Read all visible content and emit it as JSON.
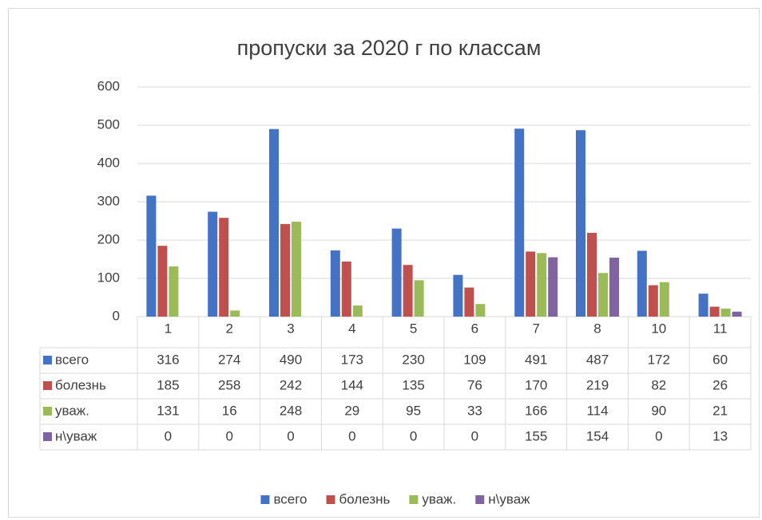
{
  "chart_data": {
    "type": "bar",
    "title": "пропуски за 2020 г по классам",
    "categories": [
      "1",
      "2",
      "3",
      "4",
      "5",
      "6",
      "7",
      "8",
      "10",
      "11"
    ],
    "series": [
      {
        "name": "всего",
        "color": "#4472c4",
        "values": [
          316,
          274,
          490,
          173,
          230,
          109,
          491,
          487,
          172,
          60
        ]
      },
      {
        "name": "болезнь",
        "color": "#c0504d",
        "values": [
          185,
          258,
          242,
          144,
          135,
          76,
          170,
          219,
          82,
          26
        ]
      },
      {
        "name": "уваж.",
        "color": "#9bbb59",
        "values": [
          131,
          16,
          248,
          29,
          95,
          33,
          166,
          114,
          90,
          21
        ]
      },
      {
        "name": "н\\уваж",
        "color": "#8064a2",
        "values": [
          0,
          0,
          0,
          0,
          0,
          0,
          155,
          154,
          0,
          13
        ]
      }
    ],
    "ylim": [
      0,
      600
    ],
    "yticks": [
      0,
      100,
      200,
      300,
      400,
      500,
      600
    ],
    "grid": true,
    "legend": "bottom",
    "data_table": true
  }
}
